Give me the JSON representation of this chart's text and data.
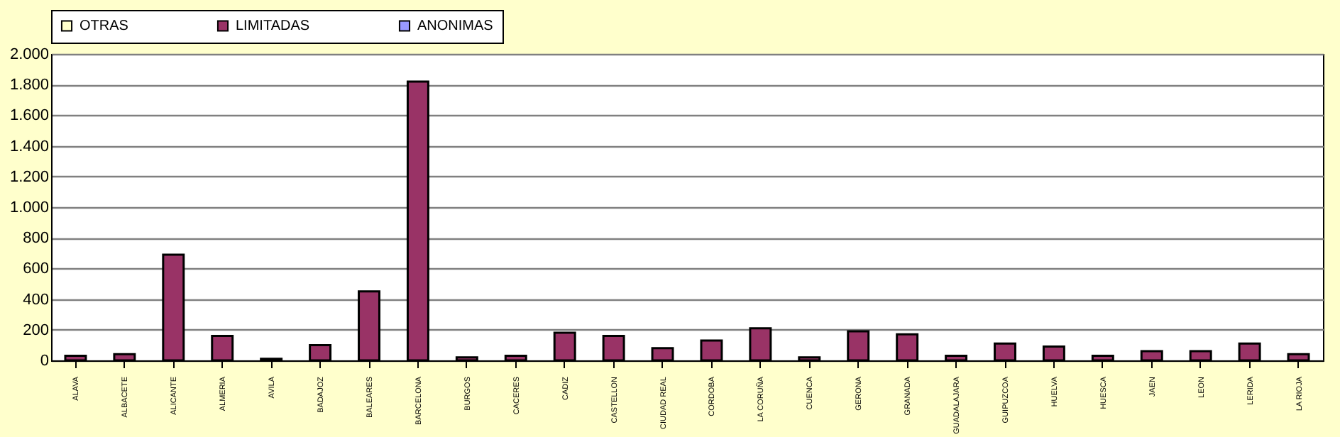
{
  "chart_data": {
    "type": "bar",
    "categories": [
      "ALAVA",
      "ALBACETE",
      "ALICANTE",
      "ALMERIA",
      "AVILA",
      "BADAJOZ",
      "BALEARES",
      "BARCELONA",
      "BURGOS",
      "CACERES",
      "CADIZ",
      "CASTELLON",
      "CIUDAD REAL",
      "CORDOBA",
      "LA CORUÑA",
      "CUENCA",
      "GERONA",
      "GRANADA",
      "GUADALAJARA",
      "GUIPUZCOA",
      "HUELVA",
      "HUESCA",
      "JAEN",
      "LEON",
      "LERIDA",
      "LA RIOJA"
    ],
    "series": [
      {
        "name": "OTRAS",
        "color": "#ffffcc",
        "values": [
          null,
          null,
          null,
          null,
          null,
          null,
          null,
          null,
          null,
          null,
          null,
          null,
          null,
          null,
          null,
          null,
          null,
          null,
          null,
          null,
          null,
          null,
          null,
          null,
          null,
          null
        ]
      },
      {
        "name": "LIMITADAS",
        "color": "#993366",
        "values": [
          30,
          40,
          690,
          160,
          10,
          100,
          450,
          1820,
          20,
          30,
          180,
          160,
          80,
          130,
          210,
          20,
          190,
          170,
          30,
          110,
          90,
          30,
          60,
          60,
          110,
          40
        ]
      },
      {
        "name": "ANONIMAS",
        "color": "#9999ff",
        "values": [
          null,
          null,
          null,
          null,
          null,
          null,
          null,
          null,
          null,
          null,
          null,
          null,
          null,
          null,
          null,
          null,
          null,
          null,
          null,
          null,
          null,
          null,
          null,
          null,
          null,
          null
        ]
      }
    ],
    "ylim": [
      0,
      2000
    ],
    "yticks": [
      {
        "value": 0,
        "label": "0"
      },
      {
        "value": 200,
        "label": "200"
      },
      {
        "value": 400,
        "label": "400"
      },
      {
        "value": 600,
        "label": "600"
      },
      {
        "value": 800,
        "label": "800"
      },
      {
        "value": 1000,
        "label": "1.000"
      },
      {
        "value": 1200,
        "label": "1.200"
      },
      {
        "value": 1400,
        "label": "1.400"
      },
      {
        "value": 1600,
        "label": "1.600"
      },
      {
        "value": 1800,
        "label": "1.800"
      },
      {
        "value": 2000,
        "label": "2.000"
      }
    ],
    "grid": "y",
    "legend": "top"
  }
}
